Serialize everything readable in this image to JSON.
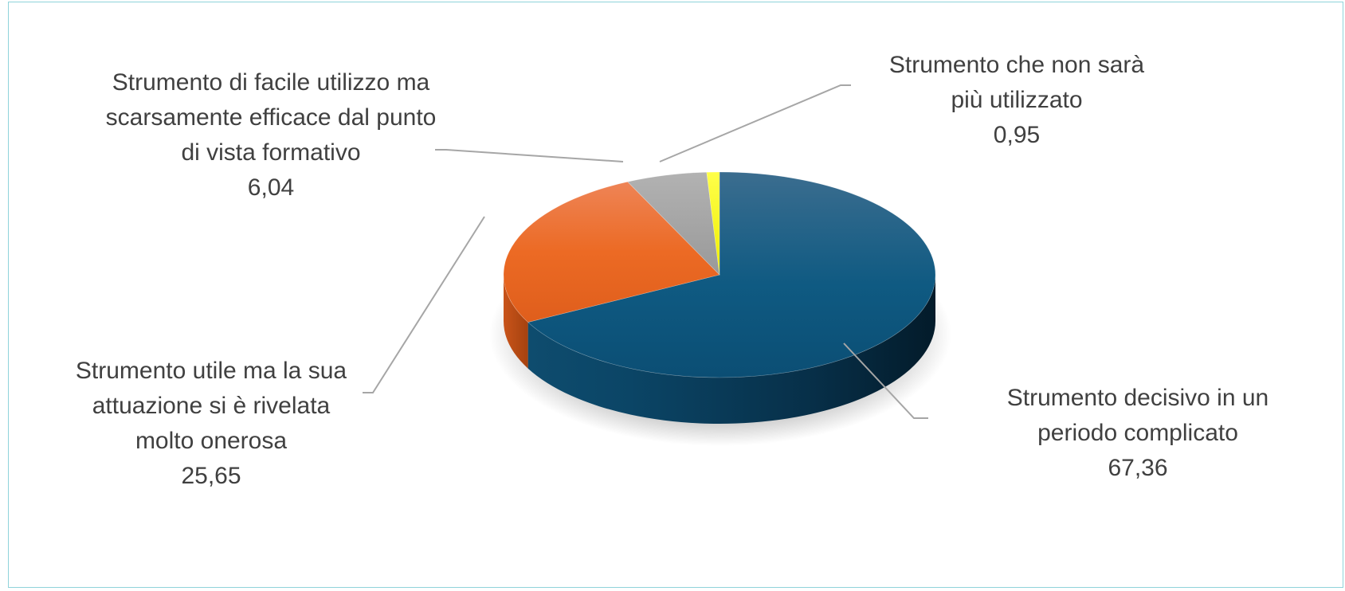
{
  "chart_data": {
    "type": "pie",
    "title": "",
    "style": "3d",
    "slices": [
      {
        "label": "Strumento decisivo in un periodo complicato",
        "value": 67.36,
        "value_text": "67,36",
        "color": "#0f5a82"
      },
      {
        "label": "Strumento utile ma la sua attuazione si è rivelata molto onerosa",
        "value": 25.65,
        "value_text": "25,65",
        "color": "#ec6a24"
      },
      {
        "label": "Strumento di facile utilizzo ma scarsamente efficace dal punto di vista formativo",
        "value": 6.04,
        "value_text": "6,04",
        "color": "#a3a3a3"
      },
      {
        "label": "Strumento che non sarà più utilizzato",
        "value": 0.95,
        "value_text": "0,95",
        "color": "#f2f20e"
      }
    ],
    "labels": [
      {
        "lines": "Strumento decisivo in un\nperiodo complicato",
        "value": "67,36"
      },
      {
        "lines": "Strumento utile ma la sua\nattuazione si è rivelata\nmolto onerosa",
        "value": "25,65"
      },
      {
        "lines": "Strumento di facile utilizzo ma\nscarsamente efficace dal punto\ndi vista formativo",
        "value": "6,04"
      },
      {
        "lines": "Strumento che non sarà\npiù utilizzato",
        "value": "0,95"
      }
    ],
    "legend": "none",
    "data_labels": "outside-with-leader-lines"
  }
}
